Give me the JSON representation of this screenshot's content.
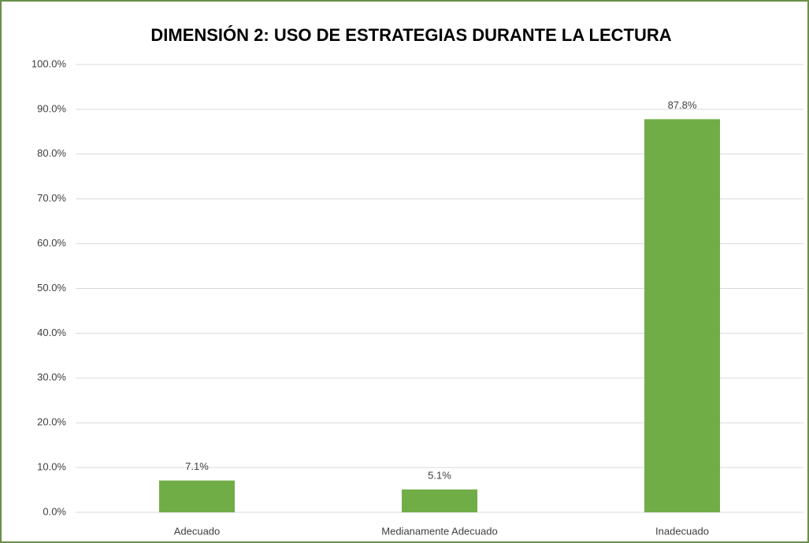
{
  "chart_data": {
    "type": "bar",
    "title": "DIMENSIÓN 2: USO DE ESTRATEGIAS DURANTE LA LECTURA",
    "categories": [
      "Adecuado",
      "Medianamente Adecuado",
      "Inadecuado"
    ],
    "values": [
      7.1,
      5.1,
      87.8
    ],
    "value_labels": [
      "7.1%",
      "5.1%",
      "87.8%"
    ],
    "color": "#70ad47",
    "ylim": [
      0,
      100
    ],
    "yticks": [
      {
        "value": 0,
        "label": "0.0%"
      },
      {
        "value": 10,
        "label": "10.0%"
      },
      {
        "value": 20,
        "label": "20.0%"
      },
      {
        "value": 30,
        "label": "30.0%"
      },
      {
        "value": 40,
        "label": "40.0%"
      },
      {
        "value": 50,
        "label": "50.0%"
      },
      {
        "value": 60,
        "label": "60.0%"
      },
      {
        "value": 70,
        "label": "70.0%"
      },
      {
        "value": 80,
        "label": "80.0%"
      },
      {
        "value": 90,
        "label": "90.0%"
      },
      {
        "value": 100,
        "label": "100.0%"
      }
    ],
    "grid": true
  }
}
